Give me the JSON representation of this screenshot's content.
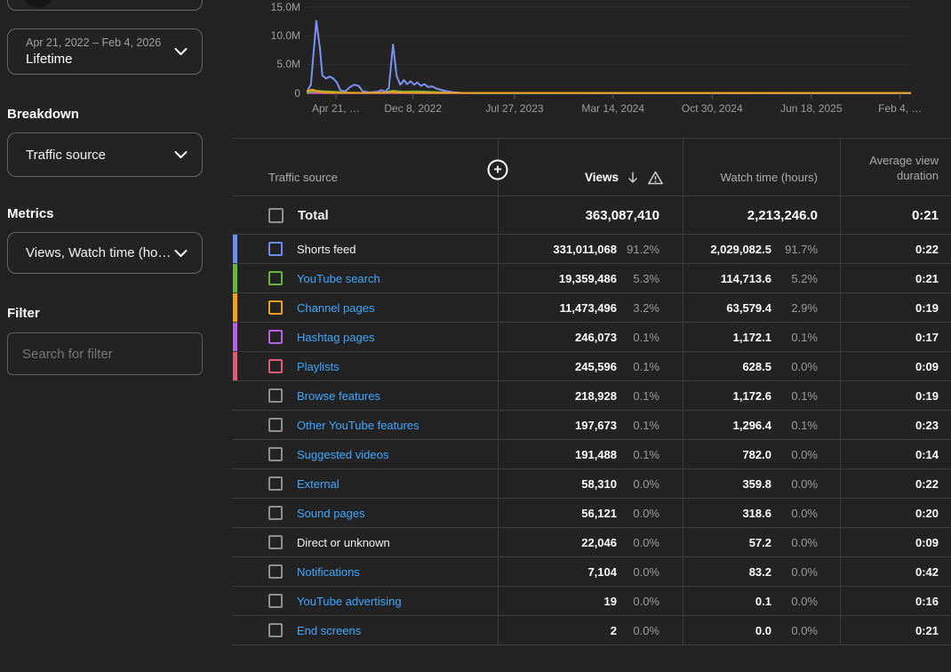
{
  "sidebar": {
    "date_filter": {
      "range": "Apr 21, 2022 – Feb 4, 2026",
      "label": "Lifetime"
    },
    "breakdown": {
      "heading": "Breakdown",
      "selected": "Traffic source"
    },
    "metrics": {
      "heading": "Metrics",
      "selected": "Views, Watch time (ho…"
    },
    "filter": {
      "heading": "Filter",
      "placeholder": "Search for filter"
    }
  },
  "chart_data": {
    "type": "line",
    "title": "",
    "x_axis": {
      "start": "Apr 21, 2022",
      "end": "Feb 4, 2026",
      "tick_labels": [
        "Apr 21, …",
        "Dec 8, 2022",
        "Jul 27, 2023",
        "Mar 14, 2024",
        "Oct 30, 2024",
        "Jun 18, 2025",
        "Feb 4, …"
      ],
      "tick_positions_pct": [
        4.85,
        17.6,
        34.4,
        50.7,
        67.1,
        83.5,
        98.2
      ]
    },
    "y_axis": {
      "tick_labels": [
        "15.0M",
        "10.0M",
        "5.0M",
        "0"
      ],
      "min": 0,
      "max_views": 15000000,
      "grid": true
    },
    "legend_position": "none",
    "series": [
      {
        "name": "Hashtag pages",
        "color": "#b761ea",
        "points": [
          [
            0,
            0.05
          ],
          [
            100,
            0.02
          ]
        ]
      },
      {
        "name": "Playlists",
        "color": "#e25b74",
        "points": [
          [
            0,
            0.12
          ],
          [
            1.5,
            0.2
          ],
          [
            3,
            0.08
          ],
          [
            100,
            0.02
          ]
        ]
      },
      {
        "name": "YouTube search",
        "color": "#67b73a",
        "points": [
          [
            0,
            0.1
          ],
          [
            1.5,
            0.45
          ],
          [
            3,
            0.35
          ],
          [
            4.5,
            0.3
          ],
          [
            6,
            0.15
          ],
          [
            8,
            0.1
          ],
          [
            10,
            0.06
          ],
          [
            12.5,
            0.12
          ],
          [
            14.3,
            0.45
          ],
          [
            16,
            0.3
          ],
          [
            18,
            0.35
          ],
          [
            20,
            0.3
          ],
          [
            22,
            0.2
          ],
          [
            24,
            0.1
          ],
          [
            27,
            0.06
          ],
          [
            100,
            0.05
          ]
        ]
      },
      {
        "name": "Shorts feed",
        "color": "#7b92f3",
        "points": [
          [
            0,
            0.2
          ],
          [
            0.7,
            1.5
          ],
          [
            1.6,
            12.6
          ],
          [
            2.2,
            7.8
          ],
          [
            2.6,
            3.1
          ],
          [
            3.2,
            2.6
          ],
          [
            3.8,
            2.9
          ],
          [
            4.4,
            2.6
          ],
          [
            5.0,
            1.9
          ],
          [
            5.6,
            0.5
          ],
          [
            6.4,
            0.35
          ],
          [
            7.2,
            1.1
          ],
          [
            7.9,
            1.5
          ],
          [
            8.6,
            1.3
          ],
          [
            9.3,
            0.35
          ],
          [
            10.5,
            0.15
          ],
          [
            11.8,
            0.3
          ],
          [
            12.4,
            0.55
          ],
          [
            13.0,
            0.3
          ],
          [
            13.6,
            0.9
          ],
          [
            14.3,
            8.5
          ],
          [
            14.9,
            3.0
          ],
          [
            15.5,
            1.5
          ],
          [
            16.1,
            2.3
          ],
          [
            16.6,
            1.6
          ],
          [
            17.2,
            2.1
          ],
          [
            17.8,
            1.5
          ],
          [
            18.3,
            1.9
          ],
          [
            18.9,
            1.3
          ],
          [
            19.5,
            1.6
          ],
          [
            20.1,
            1.1
          ],
          [
            20.8,
            1.2
          ],
          [
            21.5,
            0.8
          ],
          [
            22.3,
            0.6
          ],
          [
            23.2,
            0.35
          ],
          [
            24.2,
            0.2
          ],
          [
            25.5,
            0.1
          ],
          [
            28,
            0.05
          ],
          [
            100,
            0.04
          ]
        ]
      },
      {
        "name": "Channel pages",
        "color": "#f0a11d",
        "points": [
          [
            0,
            0.35
          ],
          [
            0.9,
            0.65
          ],
          [
            1.8,
            0.35
          ],
          [
            2.8,
            0.18
          ],
          [
            4,
            0.12
          ],
          [
            6,
            0.1
          ],
          [
            10,
            0.08
          ],
          [
            13.5,
            0.12
          ],
          [
            14.3,
            0.3
          ],
          [
            15.2,
            0.15
          ],
          [
            18,
            0.1
          ],
          [
            25,
            0.08
          ],
          [
            100,
            0.08
          ]
        ]
      }
    ]
  },
  "table": {
    "add_button_glyph": "+",
    "columns": {
      "traffic_source": "Traffic source",
      "views": "Views",
      "watch_time": "Watch time (hours)",
      "avg_duration": "Average view duration"
    },
    "total": {
      "label": "Total",
      "views": "363,087,410",
      "watch": "2,213,246.0",
      "avg": "0:21"
    },
    "rows": [
      {
        "source": "Shorts feed",
        "link": false,
        "color": "#6e8df2",
        "views": "331,011,068",
        "views_pct": "91.2%",
        "watch": "2,029,082.5",
        "watch_pct": "91.7%",
        "avg": "0:22"
      },
      {
        "source": "YouTube search",
        "link": true,
        "color": "#67b73a",
        "views": "19,359,486",
        "views_pct": "5.3%",
        "watch": "114,713.6",
        "watch_pct": "5.2%",
        "avg": "0:21"
      },
      {
        "source": "Channel pages",
        "link": true,
        "color": "#efa01e",
        "views": "11,473,496",
        "views_pct": "3.2%",
        "watch": "63,579.4",
        "watch_pct": "2.9%",
        "avg": "0:19"
      },
      {
        "source": "Hashtag pages",
        "link": true,
        "color": "#b761ea",
        "views": "246,073",
        "views_pct": "0.1%",
        "watch": "1,172.1",
        "watch_pct": "0.1%",
        "avg": "0:17"
      },
      {
        "source": "Playlists",
        "link": true,
        "color": "#e25b74",
        "views": "245,596",
        "views_pct": "0.1%",
        "watch": "628.5",
        "watch_pct": "0.0%",
        "avg": "0:09"
      },
      {
        "source": "Browse features",
        "link": true,
        "color": null,
        "views": "218,928",
        "views_pct": "0.1%",
        "watch": "1,172.6",
        "watch_pct": "0.1%",
        "avg": "0:19"
      },
      {
        "source": "Other YouTube features",
        "link": true,
        "color": null,
        "views": "197,673",
        "views_pct": "0.1%",
        "watch": "1,296.4",
        "watch_pct": "0.1%",
        "avg": "0:23"
      },
      {
        "source": "Suggested videos",
        "link": true,
        "color": null,
        "views": "191,488",
        "views_pct": "0.1%",
        "watch": "782.0",
        "watch_pct": "0.0%",
        "avg": "0:14"
      },
      {
        "source": "External",
        "link": true,
        "color": null,
        "views": "58,310",
        "views_pct": "0.0%",
        "watch": "359.8",
        "watch_pct": "0.0%",
        "avg": "0:22"
      },
      {
        "source": "Sound pages",
        "link": true,
        "color": null,
        "views": "56,121",
        "views_pct": "0.0%",
        "watch": "318.6",
        "watch_pct": "0.0%",
        "avg": "0:20"
      },
      {
        "source": "Direct or unknown",
        "link": false,
        "color": null,
        "views": "22,046",
        "views_pct": "0.0%",
        "watch": "57.2",
        "watch_pct": "0.0%",
        "avg": "0:09"
      },
      {
        "source": "Notifications",
        "link": true,
        "color": null,
        "views": "7,104",
        "views_pct": "0.0%",
        "watch": "83.2",
        "watch_pct": "0.0%",
        "avg": "0:42"
      },
      {
        "source": "YouTube advertising",
        "link": true,
        "color": null,
        "views": "19",
        "views_pct": "0.0%",
        "watch": "0.1",
        "watch_pct": "0.0%",
        "avg": "0:16"
      },
      {
        "source": "End screens",
        "link": true,
        "color": null,
        "views": "2",
        "views_pct": "0.0%",
        "watch": "0.0",
        "watch_pct": "0.0%",
        "avg": "0:21"
      }
    ]
  }
}
